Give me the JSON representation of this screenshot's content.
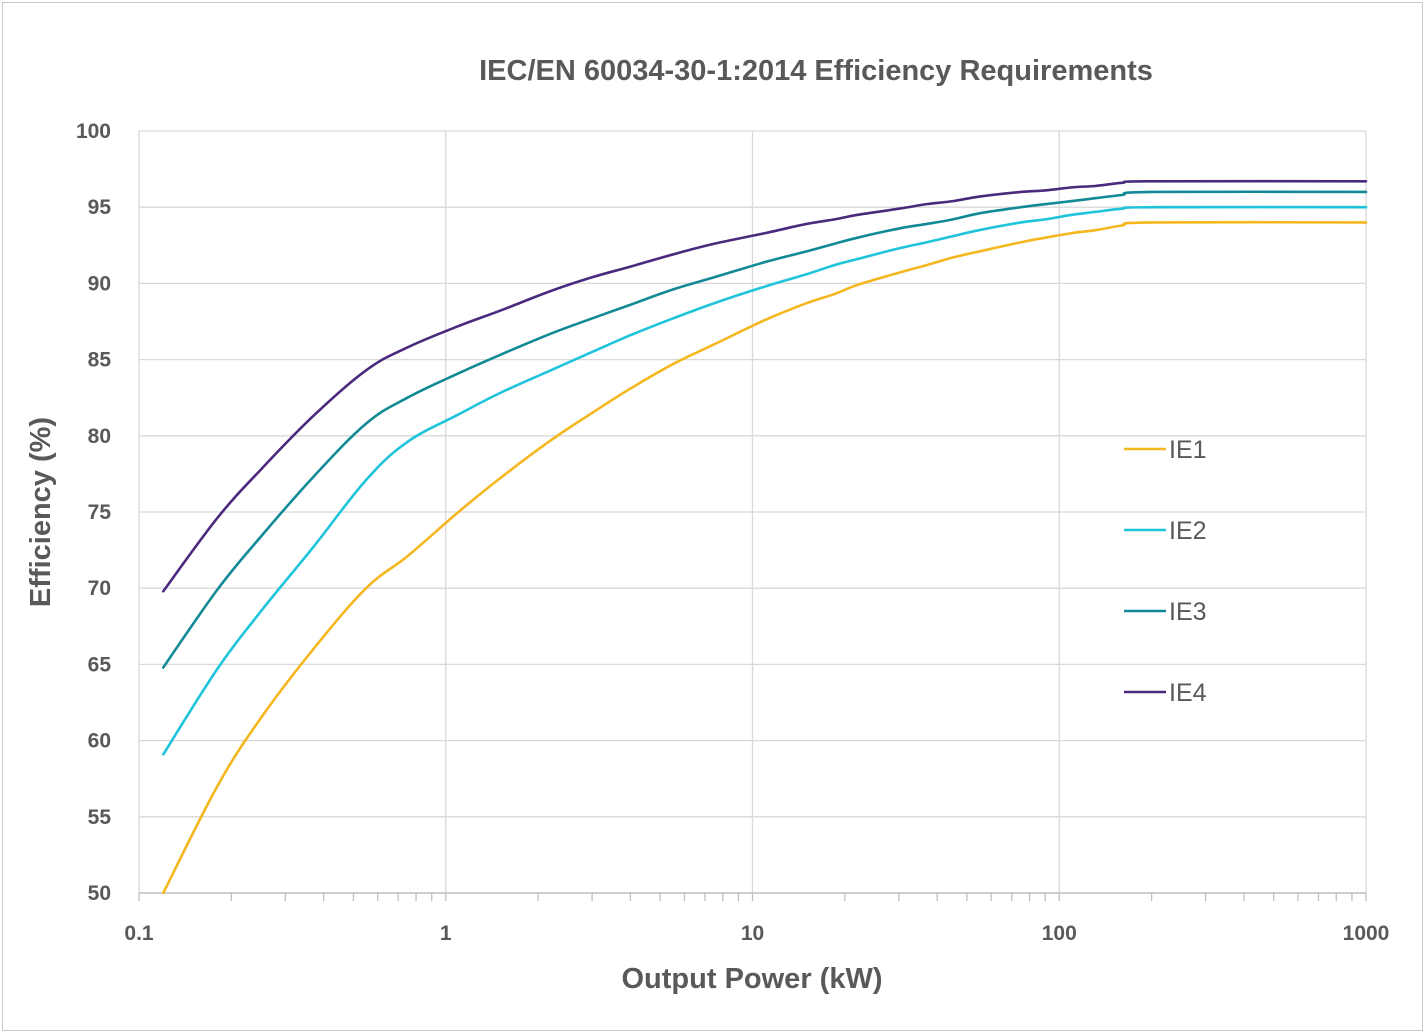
{
  "chart_data": {
    "type": "line",
    "title": "IEC/EN 60034-30-1:2014 Efficiency Requirements",
    "xlabel": "Output Power (kW)",
    "ylabel": "Efficiency (%)",
    "xscale": "log",
    "xlim": [
      0.1,
      1000
    ],
    "ylim": [
      50,
      100
    ],
    "x_ticks": [
      0.1,
      1,
      10,
      100,
      1000
    ],
    "x_tick_labels": [
      "0.1",
      "1",
      "10",
      "100",
      "1000"
    ],
    "y_ticks": [
      50,
      55,
      60,
      65,
      70,
      75,
      80,
      85,
      90,
      95,
      100
    ],
    "y_tick_labels": [
      "50",
      "55",
      "60",
      "65",
      "70",
      "75",
      "80",
      "85",
      "90",
      "95",
      "100"
    ],
    "grid": "major horizontal and vertical",
    "legend_position": "right",
    "x": [
      0.12,
      0.18,
      0.25,
      0.37,
      0.55,
      0.75,
      1.1,
      1.5,
      2.2,
      3,
      4,
      5.5,
      7.5,
      11,
      15,
      18.5,
      22,
      30,
      37,
      45,
      55,
      75,
      90,
      110,
      132,
      160,
      200,
      1000
    ],
    "series": [
      {
        "name": "IE1",
        "color": "#F5B71F",
        "values": [
          50.0,
          57.0,
          61.5,
          66.0,
          70.0,
          72.1,
          75.0,
          77.2,
          79.7,
          81.5,
          83.1,
          84.7,
          86.0,
          87.6,
          88.7,
          89.3,
          89.9,
          90.7,
          91.2,
          91.7,
          92.1,
          92.7,
          93.0,
          93.3,
          93.5,
          93.8,
          94.0,
          94.0
        ]
      },
      {
        "name": "IE2",
        "color": "#1FC4DB",
        "values": [
          59.1,
          64.7,
          68.5,
          72.7,
          77.1,
          79.6,
          81.4,
          82.8,
          84.3,
          85.5,
          86.6,
          87.7,
          88.7,
          89.8,
          90.6,
          91.2,
          91.6,
          92.3,
          92.7,
          93.1,
          93.5,
          94.0,
          94.2,
          94.5,
          94.7,
          94.9,
          95.0,
          95.0
        ]
      },
      {
        "name": "IE3",
        "color": "#128A96",
        "values": [
          64.8,
          69.9,
          73.4,
          77.3,
          80.8,
          82.5,
          84.1,
          85.3,
          86.7,
          87.7,
          88.6,
          89.6,
          90.4,
          91.4,
          92.1,
          92.6,
          93.0,
          93.6,
          93.9,
          94.2,
          94.6,
          95.0,
          95.2,
          95.4,
          95.6,
          95.8,
          96.0,
          96.0
        ]
      },
      {
        "name": "IE4",
        "color": "#4B2A7E",
        "values": [
          69.8,
          74.6,
          77.8,
          81.3,
          84.3,
          85.8,
          87.2,
          88.2,
          89.5,
          90.4,
          91.1,
          91.9,
          92.6,
          93.3,
          93.9,
          94.2,
          94.5,
          94.9,
          95.2,
          95.4,
          95.7,
          96.0,
          96.1,
          96.3,
          96.4,
          96.6,
          96.7,
          96.7
        ]
      }
    ]
  }
}
